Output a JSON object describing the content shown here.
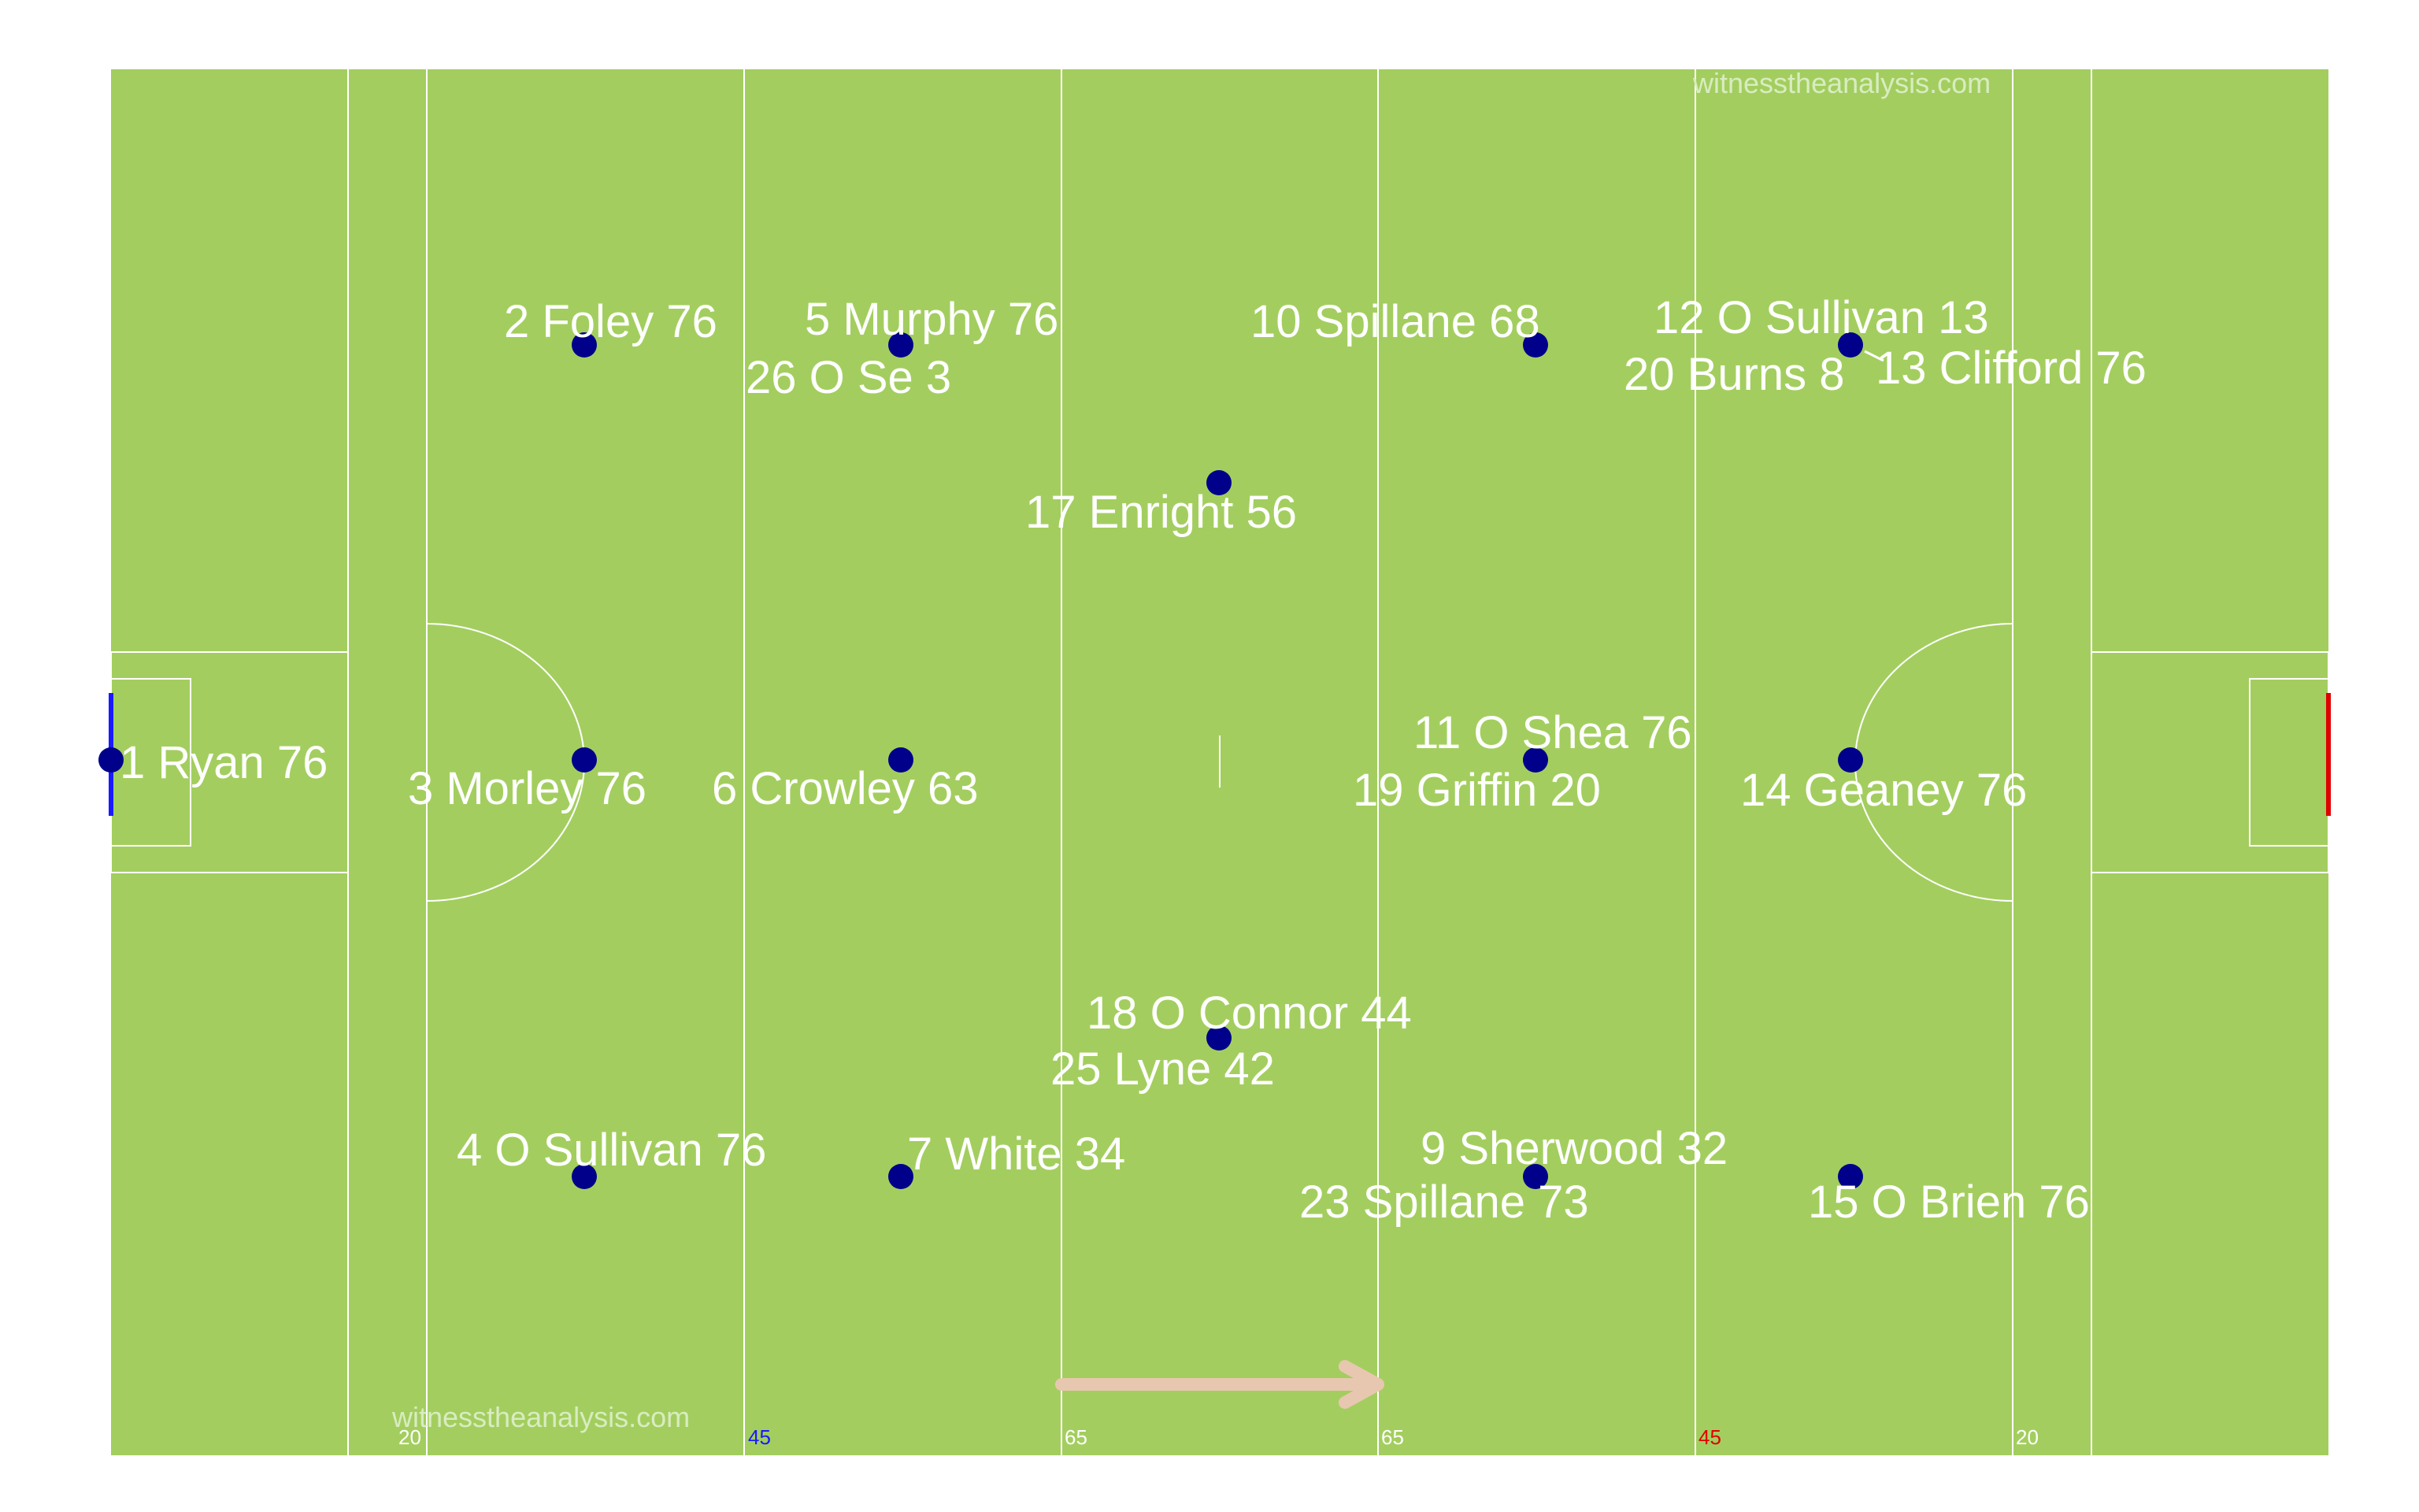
{
  "watermark": "witnesstheanalysis.com",
  "colors": {
    "pitch": "#a3ce5f",
    "lines": "#ffffff",
    "player_dot": "#00008b",
    "own_goal": "#1a1aff",
    "opp_goal": "#e00000",
    "arrow": "#e8c7b0",
    "mark_45_own": "#1a1aff",
    "mark_45_opp": "#e00000"
  },
  "line_marks": [
    {
      "text": "20",
      "color": "white"
    },
    {
      "text": "45",
      "color": "blue"
    },
    {
      "text": "65",
      "color": "white"
    },
    {
      "text": "65",
      "color": "white"
    },
    {
      "text": "45",
      "color": "red"
    },
    {
      "text": "20",
      "color": "white"
    }
  ],
  "players": [
    {
      "label": "1 Ryan  76"
    },
    {
      "label": "2 Foley  76"
    },
    {
      "label": "5 Murphy 76"
    },
    {
      "label": "26 O Se 3"
    },
    {
      "label": "10 Spillane  68"
    },
    {
      "label": "12 O Sullivan 13"
    },
    {
      "label": "20 Burns 8"
    },
    {
      "label": "13 Clifford  76"
    },
    {
      "label": "17 Enright  56"
    },
    {
      "label": "3 Morley  76"
    },
    {
      "label": "6 Crowley  63"
    },
    {
      "label": "11 O Shea 76"
    },
    {
      "label": "19 Griffin 20"
    },
    {
      "label": "14 Geaney 76"
    },
    {
      "label": "18 O Connor  44"
    },
    {
      "label": "25 Lyne 42"
    },
    {
      "label": "4 O Sullivan  76"
    },
    {
      "label": "7 White 34"
    },
    {
      "label": "9 Sherwood 32"
    },
    {
      "label": "23 Spillane  73"
    },
    {
      "label": "15 O Brien 76"
    }
  ]
}
